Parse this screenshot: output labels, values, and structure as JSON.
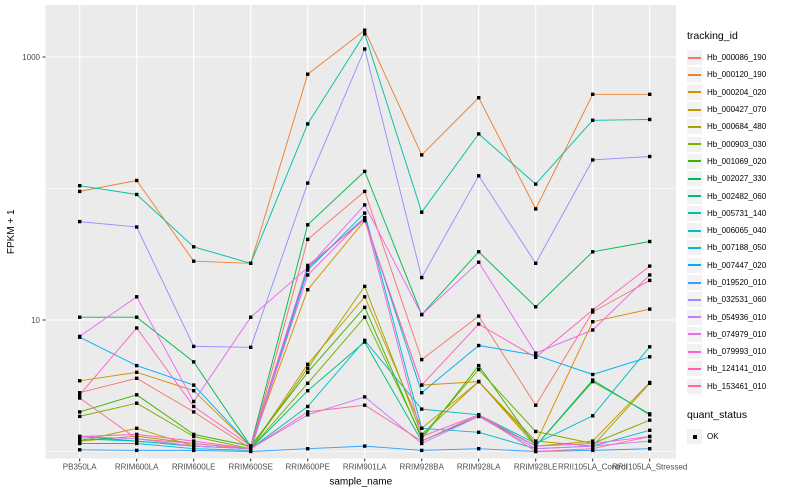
{
  "window": {
    "background": "#FFFFFF"
  },
  "chart_data": {
    "type": "line",
    "title": "",
    "xlabel": "sample_name",
    "ylabel": "FPKM + 1",
    "y_scale": "log10",
    "ylim": [
      0.89,
      2400
    ],
    "y_tick_values": [
      1000,
      10
    ],
    "y_tick_labels": [
      "1000",
      "10"
    ],
    "y_minor_gridlines": [
      100,
      1
    ],
    "grid": true,
    "panel_background": "#EBEBEB",
    "gridline_color": "#FFFFFF",
    "tick_color": "#333333",
    "tick_text_color": "#4D4D4D",
    "axis_title_color": "#000000",
    "point_color": "#000000",
    "point_shape": "square",
    "legend_position": "right",
    "x_categories": [
      "PB350LA",
      "RRIM600LA",
      "RRIM600LE",
      "RRIM600SE",
      "RRIM600PE",
      "RRIM901LA",
      "RRIM928BA",
      "RRIM928LA",
      "RRIM928LE",
      "RRII105LA_Control",
      "RRII105LA_Stressed"
    ],
    "series": [
      {
        "name": "Hb_000086_190",
        "color": "#F8766D",
        "values": [
          2.8,
          3.6,
          2.0,
          1.05,
          41,
          95,
          5.0,
          10.7,
          2.25,
          11.5,
          20
        ]
      },
      {
        "name": "Hb_000120_190",
        "color": "#EA8331",
        "values": [
          95,
          115,
          28,
          27,
          740,
          1600,
          180,
          490,
          70,
          520,
          520
        ]
      },
      {
        "name": "Hb_000204_020",
        "color": "#D89000",
        "values": [
          3.45,
          4.0,
          2.9,
          1.1,
          17,
          57,
          3.2,
          3.4,
          1.15,
          9.7,
          12.1
        ]
      },
      {
        "name": "Hb_000427_070",
        "color": "#C09B00",
        "values": [
          1.2,
          1.5,
          1.1,
          1.05,
          4.6,
          15,
          1.5,
          3.4,
          1.1,
          1.2,
          3.35
        ]
      },
      {
        "name": "Hb_000684_480",
        "color": "#A3A500",
        "values": [
          1.2,
          1.31,
          1.15,
          1.05,
          4.3,
          18,
          1.35,
          3.4,
          1.2,
          1.1,
          3.3
        ]
      },
      {
        "name": "Hb_000903_030",
        "color": "#7CAE00",
        "values": [
          1.85,
          2.33,
          1.3,
          1.05,
          3.3,
          10.5,
          1.3,
          4.2,
          1.42,
          1.15,
          1.73
        ]
      },
      {
        "name": "Hb_001069_020",
        "color": "#39B600",
        "values": [
          2.0,
          2.7,
          1.35,
          1.1,
          4.0,
          12.5,
          1.25,
          4.5,
          1.1,
          3.4,
          1.93
        ]
      },
      {
        "name": "Hb_002027_330",
        "color": "#00BB4E",
        "values": [
          10.5,
          10.5,
          4.8,
          1.1,
          53,
          135,
          11,
          33,
          12.6,
          33,
          39.5
        ]
      },
      {
        "name": "Hb_002482_060",
        "color": "#00BF7D",
        "values": [
          1.3,
          1.2,
          1.1,
          1.05,
          2.9,
          6.8,
          1.2,
          1.85,
          1.1,
          3.5,
          1.9
        ]
      },
      {
        "name": "Hb_005731_140",
        "color": "#00C1A3",
        "values": [
          105,
          90,
          36,
          27,
          310,
          1500,
          66,
          260,
          108,
          330,
          335
        ]
      },
      {
        "name": "Hb_006065_040",
        "color": "#00BFC4",
        "values": [
          1.25,
          1.2,
          1.1,
          1.05,
          2.2,
          7.0,
          2.1,
          1.9,
          1.15,
          1.87,
          6.25
        ]
      },
      {
        "name": "Hb_007188_050",
        "color": "#00BADE",
        "values": [
          1.15,
          1.15,
          1.05,
          1.02,
          24,
          65,
          1.5,
          1.4,
          1.05,
          1.1,
          1.45
        ]
      },
      {
        "name": "Hb_007447_020",
        "color": "#00B0F6",
        "values": [
          7.4,
          4.5,
          3.2,
          1.1,
          25,
          60,
          2.8,
          6.4,
          5.4,
          3.85,
          5.25
        ]
      },
      {
        "name": "Hb_019520_010",
        "color": "#35A2FF",
        "values": [
          1.03,
          1.02,
          1.02,
          1.0,
          1.05,
          1.1,
          1.02,
          1.05,
          1.0,
          1.02,
          1.05
        ]
      },
      {
        "name": "Hb_032531_060",
        "color": "#9590FF",
        "values": [
          56,
          51,
          6.3,
          6.2,
          110,
          1150,
          21,
          125,
          27,
          165,
          175
        ]
      },
      {
        "name": "Hb_054936_010",
        "color": "#C77CFF",
        "values": [
          1.3,
          1.25,
          1.1,
          1.05,
          1.9,
          2.6,
          1.15,
          1.85,
          1.05,
          1.1,
          1.2
        ]
      },
      {
        "name": "Hb_074979_010",
        "color": "#E76BF3",
        "values": [
          7.5,
          15,
          2.4,
          10.5,
          25,
          75,
          11,
          27.5,
          5.6,
          8.4,
          22
        ]
      },
      {
        "name": "Hb_079993_010",
        "color": "#FA62DB",
        "values": [
          1.3,
          1.35,
          1.2,
          1.05,
          22,
          60,
          1.3,
          1.9,
          1.1,
          1.15,
          1.3
        ]
      },
      {
        "name": "Hb_124141_010",
        "color": "#FF62BC",
        "values": [
          2.7,
          8.7,
          2.2,
          1.1,
          26,
          58,
          3.2,
          9.3,
          5.2,
          11.9,
          25.7
        ]
      },
      {
        "name": "Hb_153461_010",
        "color": "#FF6A98",
        "values": [
          2.55,
          1.25,
          1.15,
          1.05,
          2.0,
          2.25,
          1.2,
          1.9,
          1.0,
          1.05,
          1.3
        ]
      }
    ],
    "legend": {
      "title": "tracking_id"
    },
    "quant_legend": {
      "title": "quant_status",
      "items": [
        {
          "label": "OK"
        }
      ]
    }
  }
}
